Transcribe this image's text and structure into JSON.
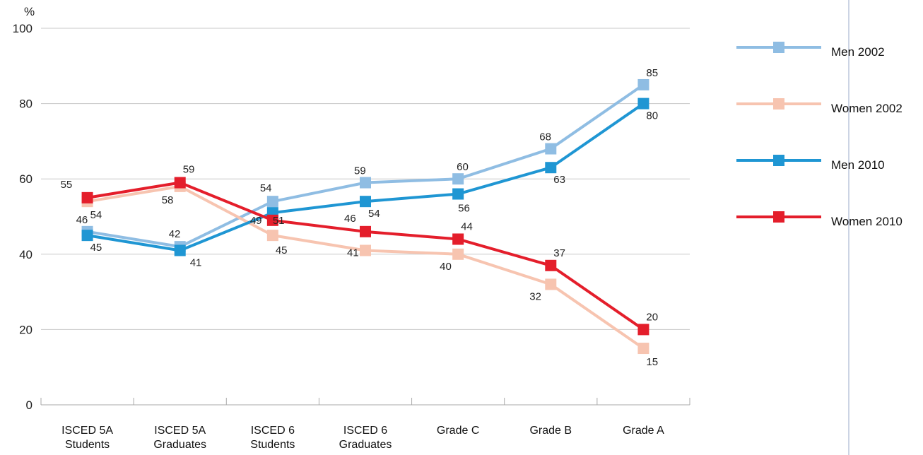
{
  "chart_data": {
    "type": "line",
    "ylabel": "%",
    "ylim": [
      0,
      100
    ],
    "yticks": [
      0,
      20,
      40,
      60,
      80,
      100
    ],
    "grid": true,
    "legend_position": "right",
    "categories": [
      [
        "ISCED 5A",
        "Students"
      ],
      [
        "ISCED 5A",
        "Graduates"
      ],
      [
        "ISCED 6",
        "Students"
      ],
      [
        "ISCED 6",
        "Graduates"
      ],
      [
        "Grade C"
      ],
      [
        "Grade B"
      ],
      [
        "Grade A"
      ]
    ],
    "series": [
      {
        "name": "Men 2002",
        "color": "#8fbde3",
        "values": [
          46,
          42,
          54,
          59,
          60,
          68,
          85
        ]
      },
      {
        "name": "Women 2002",
        "color": "#f7c4b0",
        "values": [
          54,
          58,
          45,
          41,
          40,
          32,
          15
        ]
      },
      {
        "name": "Men 2010",
        "color": "#1f96d3",
        "values": [
          45,
          41,
          51,
          54,
          56,
          63,
          80
        ]
      },
      {
        "name": "Women 2010",
        "color": "#e41e2b",
        "values": [
          55,
          59,
          49,
          46,
          44,
          37,
          20
        ]
      }
    ]
  }
}
